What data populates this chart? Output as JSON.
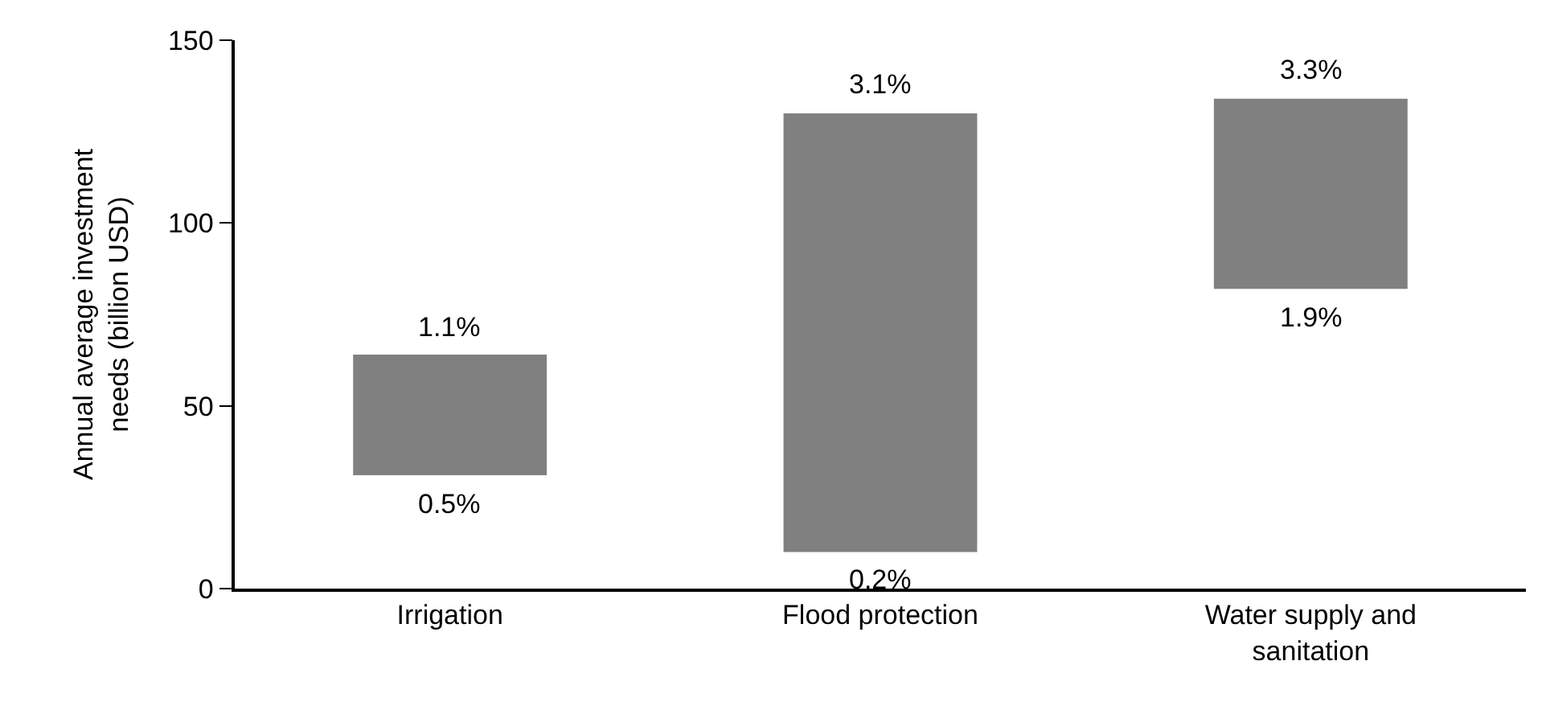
{
  "chart_data": {
    "type": "bar",
    "ylabel": "Annual average investment\nneeds (billion USD)",
    "categories": [
      "Irrigation",
      "Flood protection",
      "Water supply and sanitation"
    ],
    "base": [
      31,
      10,
      82
    ],
    "values": [
      33,
      120,
      52
    ],
    "color": "#808080",
    "ylim": [
      0,
      150
    ],
    "yticks": [
      0,
      50,
      100,
      150
    ],
    "annotations": [
      {
        "text": "1.1%",
        "x": "Irrigation",
        "y": 64
      },
      {
        "text": "0.5%",
        "x": "Irrigation",
        "y": 31
      },
      {
        "text": "3.1%",
        "x": "Flood protection",
        "y": 130
      },
      {
        "text": "0.2%",
        "x": "Flood protection",
        "y": 10
      },
      {
        "text": "3.3%",
        "x": "Water supply and sanitation",
        "y": 134
      },
      {
        "text": "1.9%",
        "x": "Water supply and sanitation",
        "y": 82
      }
    ]
  }
}
